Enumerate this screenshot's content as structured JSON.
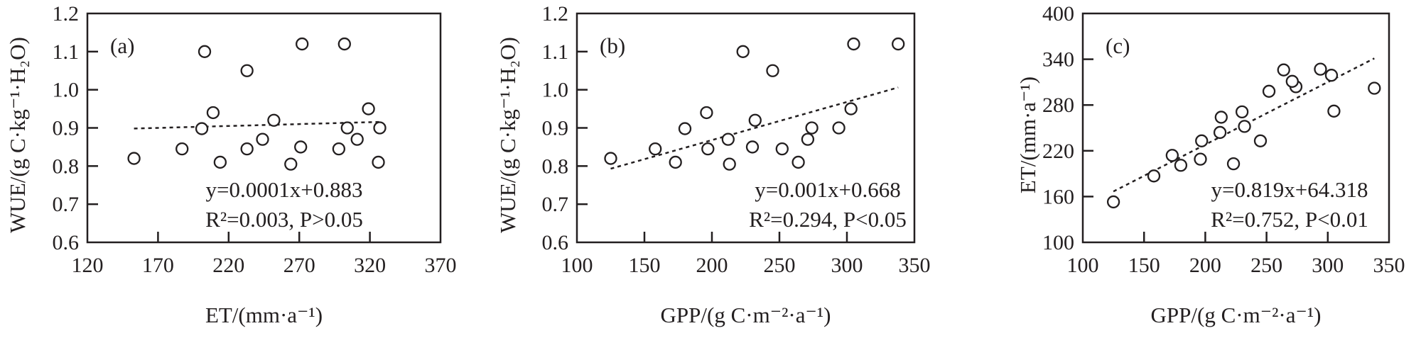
{
  "colors": {
    "ink": "#231f20",
    "background": "#ffffff"
  },
  "chart_data": [
    {
      "type": "scatter",
      "panel": "(a)",
      "xlabel": "ET/(mm·a⁻¹)",
      "ylabel": "WUE/(g C·kg⁻¹·H₂O)",
      "xlim": [
        120,
        370
      ],
      "ylim": [
        0.6,
        1.2
      ],
      "xticks": [
        "120",
        "170",
        "220",
        "270",
        "320",
        "370"
      ],
      "yticks": [
        "0.6",
        "0.7",
        "0.8",
        "0.9",
        "1.0",
        "1.1",
        "1.2"
      ],
      "x": [
        153,
        187,
        201,
        203,
        209,
        214,
        233,
        233,
        244,
        252,
        271,
        272,
        264,
        298,
        302,
        304,
        311,
        319,
        326,
        327
      ],
      "y": [
        0.82,
        0.845,
        0.898,
        1.1,
        0.94,
        0.81,
        1.05,
        0.845,
        0.87,
        0.92,
        0.85,
        1.12,
        0.805,
        0.845,
        1.12,
        0.9,
        0.87,
        0.95,
        0.81,
        0.9
      ],
      "fit": {
        "slope": 0.0001,
        "intercept": 0.883,
        "range": [
          153,
          327
        ]
      },
      "equation": "y=0.0001x+0.883",
      "stats": "R²=0.003, P>0.05"
    },
    {
      "type": "scatter",
      "panel": "(b)",
      "xlabel": "GPP/(g C·m⁻²·a⁻¹)",
      "ylabel": "WUE/(g C·kg⁻¹·H₂O)",
      "xlim": [
        100,
        350
      ],
      "ylim": [
        0.6,
        1.2
      ],
      "xticks": [
        "100",
        "150",
        "200",
        "250",
        "300",
        "350"
      ],
      "yticks": [
        "0.6",
        "0.7",
        "0.8",
        "0.9",
        "1.0",
        "1.1",
        "1.2"
      ],
      "x": [
        125,
        158,
        180,
        223,
        196,
        173,
        245,
        197,
        212,
        232,
        230,
        305,
        213,
        252,
        338,
        274,
        271,
        303,
        264,
        294
      ],
      "y": [
        0.82,
        0.845,
        0.898,
        1.1,
        0.94,
        0.81,
        1.05,
        0.845,
        0.87,
        0.92,
        0.85,
        1.12,
        0.805,
        0.845,
        1.12,
        0.9,
        0.87,
        0.95,
        0.81,
        0.9
      ],
      "fit": {
        "slope": 0.001,
        "intercept": 0.668,
        "range": [
          125,
          338
        ]
      },
      "equation": "y=0.001x+0.668",
      "stats": "R²=0.294, P<0.05"
    },
    {
      "type": "scatter",
      "panel": "(c)",
      "xlabel": "GPP/(g C·m⁻²·a⁻¹)",
      "ylabel": "ET/(mm·a⁻¹)",
      "xlim": [
        100,
        350
      ],
      "ylim": [
        100,
        400
      ],
      "xticks": [
        "100",
        "150",
        "200",
        "250",
        "300",
        "350"
      ],
      "yticks": [
        "100",
        "160",
        "220",
        "280",
        "340",
        "400"
      ],
      "x": [
        125,
        158,
        180,
        223,
        196,
        173,
        245,
        197,
        212,
        232,
        230,
        305,
        213,
        252,
        338,
        274,
        271,
        303,
        264,
        294
      ],
      "y": [
        153,
        187,
        201,
        203,
        209,
        214,
        233,
        233,
        244,
        252,
        271,
        272,
        264,
        298,
        302,
        304,
        311,
        319,
        326,
        327
      ],
      "fit": {
        "slope": 0.819,
        "intercept": 64.318,
        "range": [
          125,
          338
        ]
      },
      "equation": "y=0.819x+64.318",
      "stats": "R²=0.752, P<0.01"
    }
  ]
}
